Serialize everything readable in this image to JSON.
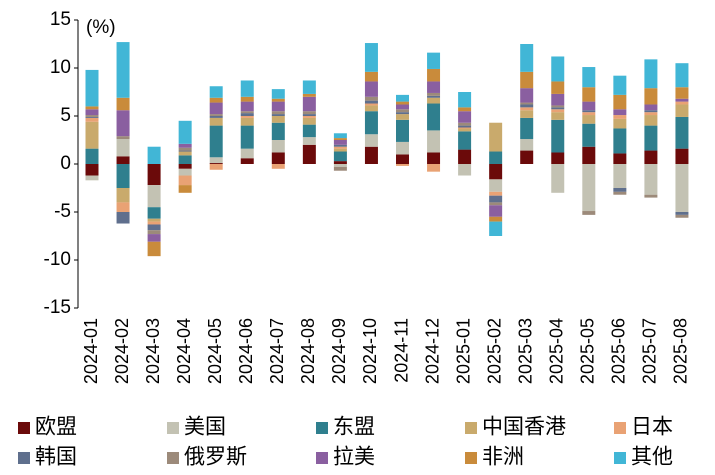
{
  "chart_data": {
    "type": "stacked-bar",
    "annotation": "(%)",
    "categories": [
      "2024-01",
      "2024-02",
      "2024-03",
      "2024-04",
      "2024-05",
      "2024-06",
      "2024-07",
      "2024-08",
      "2024-09",
      "2024-10",
      "2024-11",
      "2024-12",
      "2025-01",
      "2025-02",
      "2025-03",
      "2025-04",
      "2025-05",
      "2025-06",
      "2025-07",
      "2025-08"
    ],
    "ylim": [
      -15,
      15
    ],
    "yticks": [
      -15,
      -10,
      -5,
      0,
      5,
      10,
      15
    ],
    "series": [
      {
        "name": "欧盟",
        "color": "#6b0a0a",
        "values": [
          -1.2,
          0.8,
          -2.2,
          -0.5,
          0.1,
          0.6,
          1.2,
          2.0,
          0.3,
          1.8,
          1.0,
          1.2,
          1.5,
          -1.6,
          1.4,
          1.2,
          1.8,
          1.1,
          1.4,
          1.6
        ]
      },
      {
        "name": "美国",
        "color": "#c3c2b3",
        "values": [
          -0.5,
          1.8,
          -2.3,
          -0.7,
          0.6,
          1.0,
          1.3,
          0.8,
          -0.3,
          1.3,
          1.3,
          2.3,
          -1.2,
          -1.3,
          1.2,
          -3.0,
          -4.9,
          -2.5,
          -3.2,
          -5.0
        ]
      },
      {
        "name": "东盟",
        "color": "#2f7f8e",
        "values": [
          1.6,
          -2.5,
          -1.2,
          0.9,
          3.3,
          2.4,
          1.8,
          1.3,
          1.0,
          2.4,
          2.3,
          2.8,
          1.9,
          1.3,
          2.2,
          3.4,
          2.4,
          2.6,
          2.6,
          3.3
        ]
      },
      {
        "name": "中国香港",
        "color": "#c9aa6c",
        "values": [
          2.8,
          -1.5,
          -0.3,
          0.4,
          0.8,
          0.8,
          0.7,
          0.7,
          0.3,
          0.6,
          0.6,
          0.6,
          0.3,
          3.0,
          0.8,
          0.8,
          0.9,
          1.0,
          1.1,
          1.3
        ]
      },
      {
        "name": "日本",
        "color": "#e9a274",
        "values": [
          0.4,
          -1.0,
          -0.3,
          -1.0,
          -0.6,
          0.2,
          -0.5,
          0.2,
          0.2,
          0.2,
          -0.2,
          -0.8,
          0.1,
          -0.4,
          0.3,
          0.3,
          0.3,
          0.4,
          0.3,
          0.3
        ]
      },
      {
        "name": "韩国",
        "color": "#5f6f8d",
        "values": [
          0.1,
          -1.2,
          -0.6,
          0.1,
          0.2,
          0.3,
          0.2,
          0.2,
          0.2,
          0.3,
          0.2,
          0.2,
          0.2,
          -0.7,
          0.3,
          0.2,
          0.2,
          -0.4,
          0.2,
          -0.3
        ]
      },
      {
        "name": "俄罗斯",
        "color": "#9c8a7a",
        "values": [
          0.2,
          0.3,
          -0.4,
          0.3,
          0.2,
          0.2,
          0.3,
          0.3,
          -0.4,
          0.4,
          0.3,
          0.3,
          0.3,
          -0.3,
          0.2,
          0.2,
          -0.4,
          -0.3,
          -0.3,
          -0.3
        ]
      },
      {
        "name": "拉美",
        "color": "#8a5fa0",
        "values": [
          0.6,
          2.7,
          -0.8,
          0.4,
          1.2,
          1.0,
          1.0,
          1.5,
          0.5,
          1.6,
          0.5,
          1.2,
          1.2,
          -1.2,
          1.5,
          1.2,
          0.9,
          0.6,
          0.6,
          0.3
        ]
      },
      {
        "name": "非洲",
        "color": "#c98b3b",
        "values": [
          0.3,
          1.3,
          -1.5,
          -0.8,
          0.5,
          0.5,
          0.3,
          0.3,
          0.2,
          1.0,
          0.3,
          1.3,
          0.4,
          -0.5,
          1.7,
          1.3,
          1.5,
          1.5,
          1.7,
          1.2
        ]
      },
      {
        "name": "其他",
        "color": "#41b6d6",
        "values": [
          3.8,
          5.8,
          1.8,
          2.4,
          1.2,
          1.7,
          1.0,
          1.4,
          0.5,
          3.0,
          0.7,
          1.7,
          1.6,
          -1.5,
          2.9,
          2.6,
          2.1,
          2.0,
          3.0,
          2.5
        ]
      }
    ]
  }
}
